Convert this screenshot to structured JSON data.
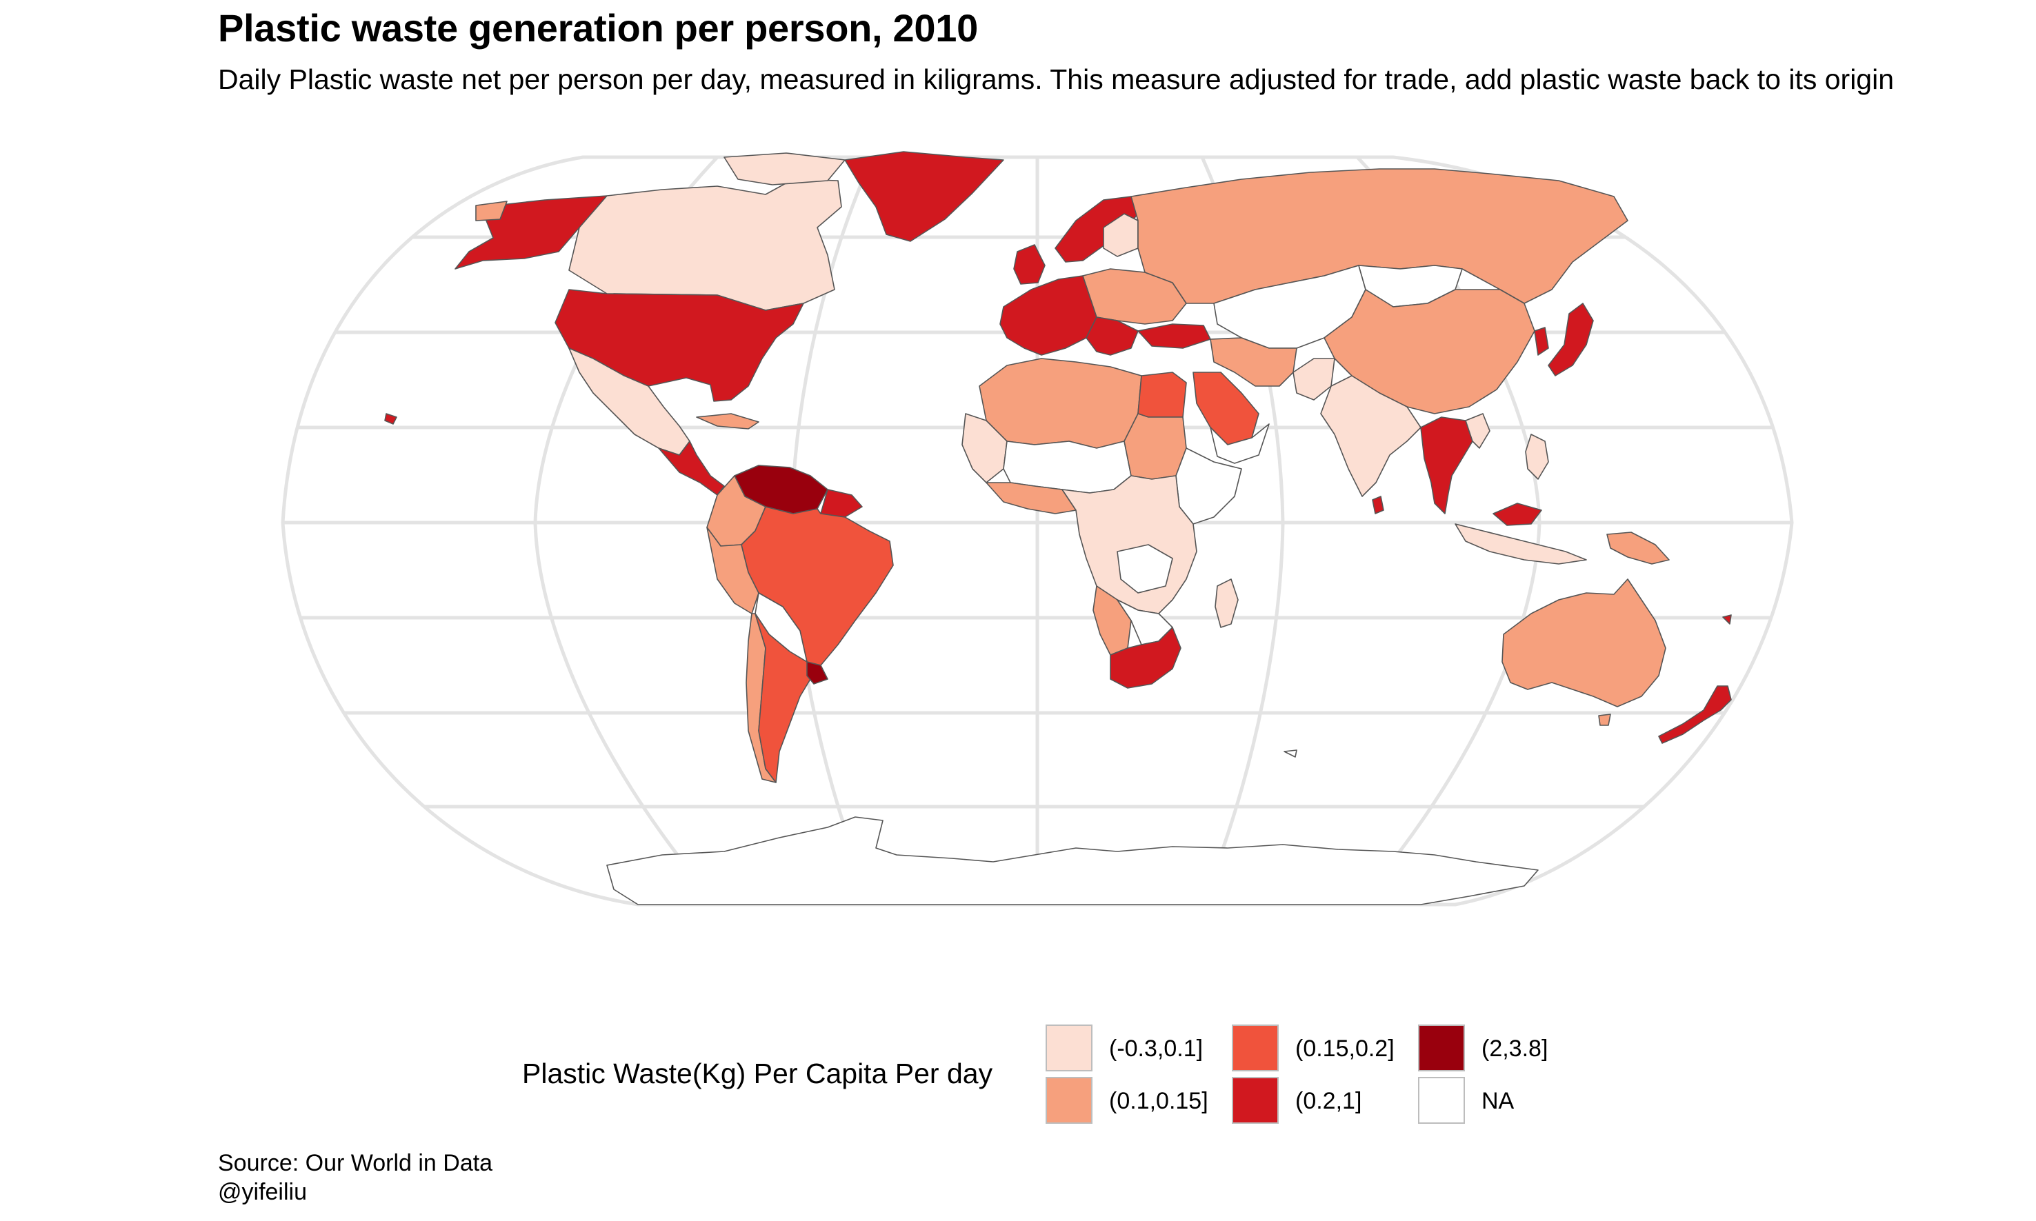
{
  "title": "Plastic waste generation per person, 2010",
  "subtitle": "Daily Plastic waste net per person per day, measured in kiligrams. This measure adjusted for trade, add plastic waste back to its origin",
  "legend": {
    "title": "Plastic Waste(Kg) Per Capita Per day",
    "items": [
      {
        "label": "(-0.3,0.1]",
        "color": "#fcdfd3"
      },
      {
        "label": "(0.1,0.15]",
        "color": "#f6a07d"
      },
      {
        "label": "(0.15,0.2]",
        "color": "#f0533c"
      },
      {
        "label": "(0.2,1]",
        "color": "#d1181f"
      },
      {
        "label": "(2,3.8]",
        "color": "#99000d"
      },
      {
        "label": "NA",
        "color": "#ffffff"
      }
    ]
  },
  "caption": {
    "source": "Source: Our World in Data",
    "author": "@yifeiliu"
  },
  "map_data": {
    "type": "choropleth",
    "projection": "robinson",
    "year": 2010,
    "regions": [
      {
        "name": "United States",
        "bin": "(0.2,1]"
      },
      {
        "name": "Alaska",
        "bin": "(0.2,1]"
      },
      {
        "name": "Canada",
        "bin": "(-0.3,0.1]"
      },
      {
        "name": "Greenland",
        "bin": "(0.2,1]"
      },
      {
        "name": "Mexico",
        "bin": "(-0.3,0.1]"
      },
      {
        "name": "Central America",
        "bin": "(0.2,1]"
      },
      {
        "name": "Venezuela",
        "bin": "(2,3.8]"
      },
      {
        "name": "Colombia",
        "bin": "(0.1,0.15]"
      },
      {
        "name": "Peru",
        "bin": "(0.1,0.15]"
      },
      {
        "name": "Brazil",
        "bin": "(0.15,0.2]"
      },
      {
        "name": "Bolivia",
        "bin": "NA"
      },
      {
        "name": "Chile",
        "bin": "(0.1,0.15]"
      },
      {
        "name": "Argentina",
        "bin": "(0.15,0.2]"
      },
      {
        "name": "Uruguay",
        "bin": "(2,3.8]"
      },
      {
        "name": "Western Europe",
        "bin": "(0.2,1]"
      },
      {
        "name": "Scandinavia",
        "bin": "(0.2,1]"
      },
      {
        "name": "Eastern Europe",
        "bin": "(0.1,0.15]"
      },
      {
        "name": "Turkey",
        "bin": "(0.2,1]"
      },
      {
        "name": "Russia",
        "bin": "(0.1,0.15]"
      },
      {
        "name": "Central Asia",
        "bin": "NA"
      },
      {
        "name": "China",
        "bin": "(0.1,0.15]"
      },
      {
        "name": "Mongolia",
        "bin": "NA"
      },
      {
        "name": "Japan",
        "bin": "(0.2,1]"
      },
      {
        "name": "India",
        "bin": "(-0.3,0.1]"
      },
      {
        "name": "Pakistan",
        "bin": "(-0.3,0.1]"
      },
      {
        "name": "Southeast Asia",
        "bin": "(0.2,1]"
      },
      {
        "name": "Indonesia",
        "bin": "(-0.3,0.1]"
      },
      {
        "name": "Malaysia",
        "bin": "(0.2,1]"
      },
      {
        "name": "Papua New Guinea",
        "bin": "(0.1,0.15]"
      },
      {
        "name": "Australia",
        "bin": "(0.1,0.15]"
      },
      {
        "name": "New Zealand",
        "bin": "(0.2,1]"
      },
      {
        "name": "Egypt",
        "bin": "(0.15,0.2]"
      },
      {
        "name": "Saudi Arabia",
        "bin": "(0.15,0.2]"
      },
      {
        "name": "Iran",
        "bin": "(0.1,0.15]"
      },
      {
        "name": "North Africa",
        "bin": "(0.1,0.15]"
      },
      {
        "name": "Sub-Saharan Africa",
        "bin": "(-0.3,0.1]"
      },
      {
        "name": "Sahel",
        "bin": "NA"
      },
      {
        "name": "Sudan",
        "bin": "(0.1,0.15]"
      },
      {
        "name": "Namibia",
        "bin": "(0.1,0.15]"
      },
      {
        "name": "South Africa",
        "bin": "(0.2,1]"
      },
      {
        "name": "Madagascar",
        "bin": "(-0.3,0.1]"
      },
      {
        "name": "Antarctica",
        "bin": "NA"
      }
    ]
  }
}
